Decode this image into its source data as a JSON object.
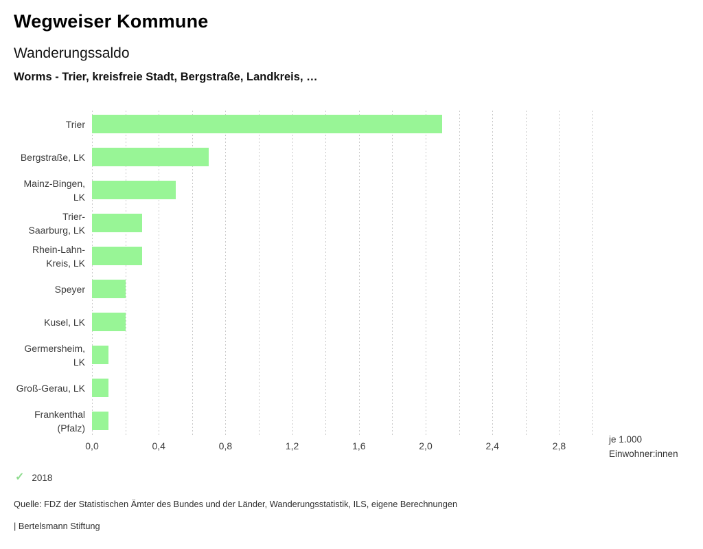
{
  "header": {
    "title": "Wegweiser Kommune",
    "subtitle": "Wanderungssaldo",
    "region_line": "Worms - Trier, kreisfreie Stadt, Bergstraße, Landkreis, …"
  },
  "chart_data": {
    "type": "bar",
    "orientation": "horizontal",
    "title": "Wanderungssaldo",
    "categories": [
      "Trier",
      "Bergstraße, LK",
      "Mainz-Bingen, LK",
      "Trier-Saarburg, LK",
      "Rhein-Lahn-Kreis, LK",
      "Speyer",
      "Kusel, LK",
      "Germersheim, LK",
      "Groß-Gerau, LK",
      "Frankenthal (Pfalz)"
    ],
    "category_label_lines": [
      [
        "Trier"
      ],
      [
        "Bergstraße, LK"
      ],
      [
        "Mainz-Bingen,",
        "LK"
      ],
      [
        "Trier-",
        "Saarburg, LK"
      ],
      [
        "Rhein-Lahn-",
        "Kreis, LK"
      ],
      [
        "Speyer"
      ],
      [
        "Kusel, LK"
      ],
      [
        "Germersheim,",
        "LK"
      ],
      [
        "Groß-Gerau, LK"
      ],
      [
        "Frankenthal",
        "(Pfalz)"
      ]
    ],
    "series": [
      {
        "name": "2018",
        "values": [
          2.1,
          0.7,
          0.5,
          0.3,
          0.3,
          0.2,
          0.2,
          0.1,
          0.1,
          0.1
        ]
      }
    ],
    "xlim": [
      0,
      3
    ],
    "grid_step": 0.2,
    "tick_values": [
      0,
      0.4,
      0.8,
      1.2,
      1.6,
      2.0,
      2.4,
      2.8
    ],
    "tick_labels": [
      "0,0",
      "0,4",
      "0,8",
      "1,2",
      "1,6",
      "2,0",
      "2,4",
      "2,8"
    ],
    "unit_label_lines": [
      "je 1.000",
      "Einwohner:innen"
    ],
    "xlabel": "",
    "ylabel": "",
    "grid": true,
    "legend_position": "bottom-left"
  },
  "legend": {
    "check_icon": "✓",
    "year": "2018"
  },
  "footer": {
    "source": "Quelle: FDZ der Statistischen Ämter des Bundes und der Länder, Wanderungsstatistik, ILS, eigene Berechnungen",
    "brand": "| Bertelsmann Stiftung"
  },
  "colors": {
    "bar": "#98f596",
    "grid": "#c9c9c9",
    "check": "#8fdc8f",
    "title_text": "#000000",
    "label_text": "#3a3a3a"
  }
}
